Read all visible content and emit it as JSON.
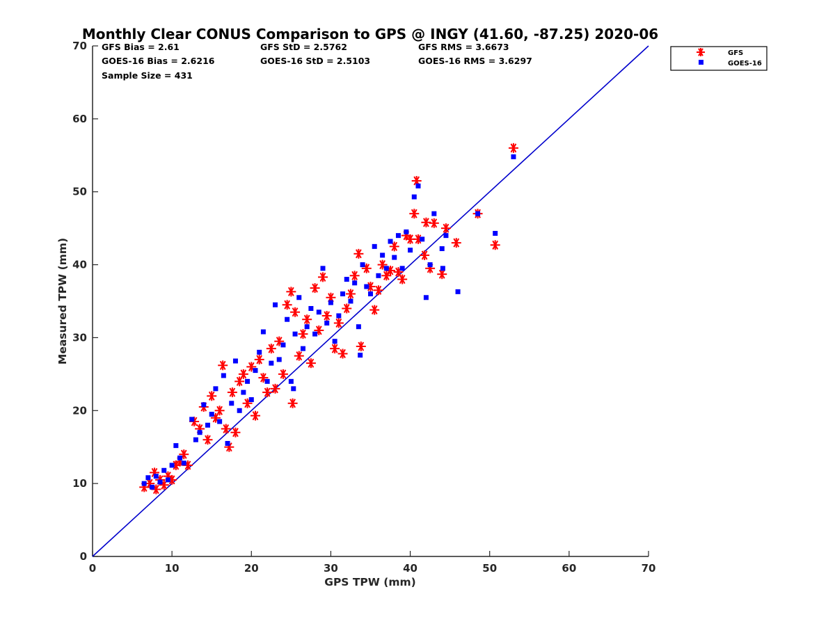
{
  "chart_data": {
    "type": "scatter",
    "title": "Monthly Clear CONUS Comparison to GPS @ INGY (41.60, -87.25) 2020-06",
    "xlabel": "GPS TPW (mm)",
    "ylabel": "Measured TPW (mm)",
    "xlim": [
      0,
      70
    ],
    "ylim": [
      0,
      70
    ],
    "xticks": [
      0,
      10,
      20,
      30,
      40,
      50,
      60,
      70
    ],
    "yticks": [
      0,
      10,
      20,
      30,
      40,
      50,
      60,
      70
    ],
    "grid": false,
    "legend_position": "outside-top-right",
    "stats": [
      [
        "GFS Bias = 2.61",
        "GFS StD = 2.5762",
        "GFS RMS = 3.6673"
      ],
      [
        "GOES-16 Bias = 2.6216",
        "GOES-16 StD = 2.5103",
        "GOES-16 RMS = 3.6297"
      ],
      [
        "Sample Size = 431"
      ]
    ],
    "reference_line": {
      "from": [
        0,
        0
      ],
      "to": [
        70,
        70
      ],
      "color": "#0000cc"
    },
    "series": [
      {
        "name": "GFS",
        "marker": "asterisk",
        "color": "#ff0000",
        "points": [
          [
            6.5,
            9.5
          ],
          [
            7.2,
            10.0
          ],
          [
            7.8,
            11.5
          ],
          [
            8.0,
            9.2
          ],
          [
            8.5,
            10.5
          ],
          [
            9.0,
            9.8
          ],
          [
            9.5,
            11.0
          ],
          [
            10.0,
            10.5
          ],
          [
            10.5,
            12.5
          ],
          [
            11.0,
            13.0
          ],
          [
            11.5,
            14.0
          ],
          [
            12.0,
            12.5
          ],
          [
            12.8,
            18.5
          ],
          [
            13.5,
            17.5
          ],
          [
            14.0,
            20.5
          ],
          [
            14.5,
            16.0
          ],
          [
            15.0,
            22.0
          ],
          [
            15.5,
            19.0
          ],
          [
            16.0,
            20.0
          ],
          [
            16.4,
            26.2
          ],
          [
            16.8,
            17.5
          ],
          [
            17.2,
            15.0
          ],
          [
            17.6,
            22.5
          ],
          [
            18.0,
            17.0
          ],
          [
            18.5,
            24.0
          ],
          [
            19.0,
            25.0
          ],
          [
            19.5,
            21.0
          ],
          [
            20.0,
            26.0
          ],
          [
            20.5,
            19.3
          ],
          [
            21.0,
            27.0
          ],
          [
            21.5,
            24.5
          ],
          [
            22.0,
            22.5
          ],
          [
            22.5,
            28.5
          ],
          [
            23.0,
            23.0
          ],
          [
            23.5,
            29.5
          ],
          [
            24.0,
            25.0
          ],
          [
            24.5,
            34.5
          ],
          [
            25.0,
            36.3
          ],
          [
            25.2,
            21.0
          ],
          [
            25.5,
            33.5
          ],
          [
            26.0,
            27.5
          ],
          [
            26.5,
            30.5
          ],
          [
            27.0,
            32.5
          ],
          [
            27.5,
            26.5
          ],
          [
            28.0,
            36.8
          ],
          [
            28.5,
            31.0
          ],
          [
            29.0,
            38.3
          ],
          [
            29.5,
            33.0
          ],
          [
            30.0,
            35.5
          ],
          [
            30.5,
            28.5
          ],
          [
            31.0,
            32.0
          ],
          [
            31.5,
            27.8
          ],
          [
            32.0,
            34.0
          ],
          [
            32.5,
            36.0
          ],
          [
            33.0,
            38.5
          ],
          [
            33.5,
            41.5
          ],
          [
            33.8,
            28.8
          ],
          [
            34.5,
            39.5
          ],
          [
            35.0,
            37.0
          ],
          [
            35.5,
            33.8
          ],
          [
            36.0,
            36.5
          ],
          [
            36.5,
            40.0
          ],
          [
            37.0,
            38.5
          ],
          [
            37.5,
            39.2
          ],
          [
            38.0,
            42.5
          ],
          [
            38.5,
            39.0
          ],
          [
            39.0,
            38.0
          ],
          [
            39.5,
            44.0
          ],
          [
            40.0,
            43.5
          ],
          [
            40.5,
            47.0
          ],
          [
            40.8,
            51.5
          ],
          [
            41.0,
            43.5
          ],
          [
            41.8,
            41.3
          ],
          [
            42.0,
            45.8
          ],
          [
            42.5,
            39.5
          ],
          [
            43.0,
            45.7
          ],
          [
            44.0,
            38.7
          ],
          [
            44.5,
            45.0
          ],
          [
            45.8,
            43.0
          ],
          [
            48.5,
            47.0
          ],
          [
            50.7,
            42.7
          ],
          [
            53.0,
            56.0
          ]
        ]
      },
      {
        "name": "GOES-16",
        "marker": "square",
        "color": "#0000ff",
        "points": [
          [
            6.5,
            10.0
          ],
          [
            7.0,
            10.8
          ],
          [
            7.5,
            9.5
          ],
          [
            8.0,
            11.0
          ],
          [
            8.5,
            10.2
          ],
          [
            9.0,
            11.8
          ],
          [
            9.5,
            10.5
          ],
          [
            10.0,
            12.5
          ],
          [
            10.5,
            15.2
          ],
          [
            11.0,
            13.5
          ],
          [
            11.5,
            12.8
          ],
          [
            12.5,
            18.8
          ],
          [
            13.0,
            16.0
          ],
          [
            13.5,
            17.0
          ],
          [
            14.0,
            20.8
          ],
          [
            14.5,
            18.0
          ],
          [
            15.0,
            19.5
          ],
          [
            15.5,
            23.0
          ],
          [
            16.0,
            18.5
          ],
          [
            16.5,
            24.8
          ],
          [
            17.0,
            15.5
          ],
          [
            17.5,
            21.0
          ],
          [
            18.0,
            26.8
          ],
          [
            18.5,
            20.0
          ],
          [
            19.0,
            22.5
          ],
          [
            19.5,
            24.0
          ],
          [
            20.0,
            21.5
          ],
          [
            20.5,
            25.5
          ],
          [
            21.0,
            28.0
          ],
          [
            21.5,
            30.8
          ],
          [
            22.0,
            24.0
          ],
          [
            22.5,
            26.5
          ],
          [
            23.0,
            34.5
          ],
          [
            23.5,
            27.0
          ],
          [
            24.0,
            29.0
          ],
          [
            24.5,
            32.5
          ],
          [
            25.0,
            24.0
          ],
          [
            25.3,
            23.0
          ],
          [
            25.5,
            30.5
          ],
          [
            26.0,
            35.5
          ],
          [
            26.5,
            28.5
          ],
          [
            27.0,
            31.5
          ],
          [
            27.5,
            34.0
          ],
          [
            28.0,
            30.5
          ],
          [
            28.5,
            33.5
          ],
          [
            29.0,
            39.5
          ],
          [
            29.5,
            32.0
          ],
          [
            30.0,
            34.8
          ],
          [
            30.5,
            29.5
          ],
          [
            31.0,
            33.0
          ],
          [
            31.5,
            36.0
          ],
          [
            32.0,
            38.0
          ],
          [
            32.5,
            35.0
          ],
          [
            33.0,
            37.5
          ],
          [
            33.5,
            31.5
          ],
          [
            33.7,
            27.6
          ],
          [
            34.0,
            40.0
          ],
          [
            34.5,
            37.0
          ],
          [
            35.0,
            36.0
          ],
          [
            35.5,
            42.5
          ],
          [
            36.0,
            38.5
          ],
          [
            36.5,
            41.3
          ],
          [
            37.0,
            39.5
          ],
          [
            37.5,
            43.2
          ],
          [
            38.0,
            41.0
          ],
          [
            38.5,
            44.0
          ],
          [
            39.0,
            39.5
          ],
          [
            39.5,
            44.5
          ],
          [
            40.0,
            42.0
          ],
          [
            40.5,
            49.3
          ],
          [
            41.0,
            50.8
          ],
          [
            41.5,
            43.5
          ],
          [
            42.0,
            35.5
          ],
          [
            42.5,
            40.0
          ],
          [
            43.0,
            47.0
          ],
          [
            44.0,
            42.2
          ],
          [
            44.1,
            39.5
          ],
          [
            44.5,
            44.0
          ],
          [
            46.0,
            36.3
          ],
          [
            48.5,
            47.0
          ],
          [
            50.7,
            44.3
          ],
          [
            53.0,
            54.8
          ]
        ]
      }
    ]
  }
}
